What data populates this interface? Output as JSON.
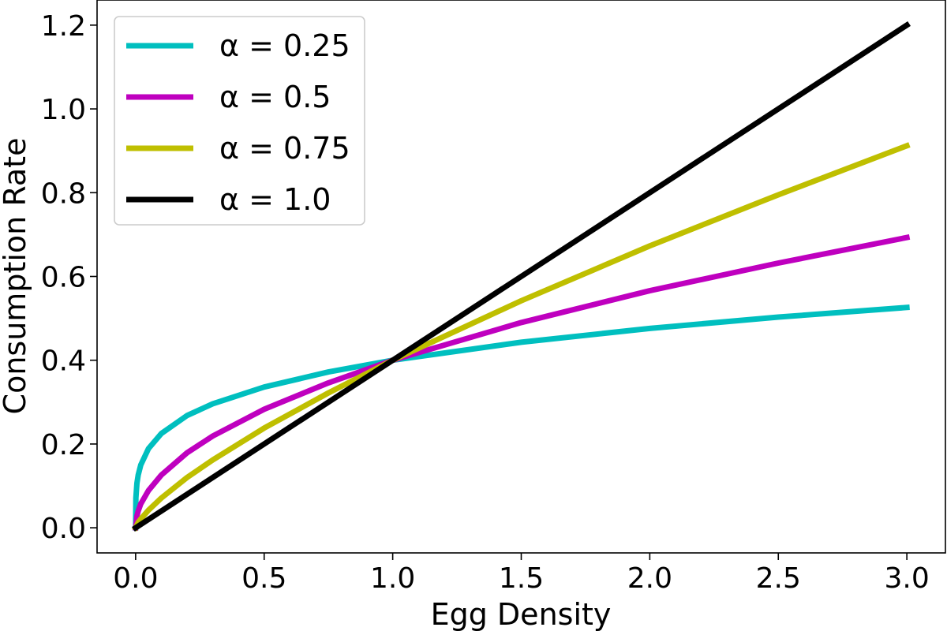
{
  "chart_data": {
    "type": "line",
    "title": "",
    "xlabel": "Egg Density",
    "ylabel": "Consumption Rate",
    "xlim": [
      -0.15,
      3.15
    ],
    "ylim": [
      -0.06,
      1.26
    ],
    "xticks": [
      0.0,
      0.5,
      1.0,
      1.5,
      2.0,
      2.5,
      3.0
    ],
    "xtick_labels": [
      "0.0",
      "0.5",
      "1.0",
      "1.5",
      "2.0",
      "2.5",
      "3.0"
    ],
    "yticks": [
      0.0,
      0.2,
      0.4,
      0.6,
      0.8,
      1.0,
      1.2
    ],
    "ytick_labels": [
      "0.0",
      "0.2",
      "0.4",
      "0.6",
      "0.8",
      "1.0",
      "1.2"
    ],
    "grid": false,
    "legend_position": "upper-left",
    "series": [
      {
        "name": "α = 0.25",
        "color": "#00bfbf",
        "x": [
          0.0,
          0.001,
          0.005,
          0.01,
          0.02,
          0.05,
          0.1,
          0.2,
          0.3,
          0.5,
          0.75,
          1.0,
          1.5,
          2.0,
          2.5,
          3.0
        ],
        "y": [
          0.0,
          0.071,
          0.106,
          0.126,
          0.15,
          0.189,
          0.225,
          0.268,
          0.296,
          0.336,
          0.372,
          0.4,
          0.443,
          0.476,
          0.503,
          0.526
        ]
      },
      {
        "name": "α = 0.5",
        "color": "#bf00bf",
        "x": [
          0.0,
          0.005,
          0.01,
          0.02,
          0.05,
          0.1,
          0.2,
          0.3,
          0.5,
          0.75,
          1.0,
          1.5,
          2.0,
          2.5,
          3.0
        ],
        "y": [
          0.0,
          0.028,
          0.04,
          0.057,
          0.089,
          0.126,
          0.179,
          0.219,
          0.283,
          0.346,
          0.4,
          0.49,
          0.566,
          0.632,
          0.693
        ]
      },
      {
        "name": "α = 0.75",
        "color": "#bfbf00",
        "x": [
          0.0,
          0.01,
          0.02,
          0.05,
          0.1,
          0.2,
          0.3,
          0.5,
          0.75,
          1.0,
          1.5,
          2.0,
          2.5,
          3.0
        ],
        "y": [
          0.0,
          0.013,
          0.021,
          0.042,
          0.071,
          0.12,
          0.162,
          0.238,
          0.322,
          0.4,
          0.542,
          0.673,
          0.795,
          0.912
        ]
      },
      {
        "name": "α = 1.0",
        "color": "#000000",
        "x": [
          0.0,
          3.0
        ],
        "y": [
          0.0,
          1.2
        ]
      }
    ]
  }
}
